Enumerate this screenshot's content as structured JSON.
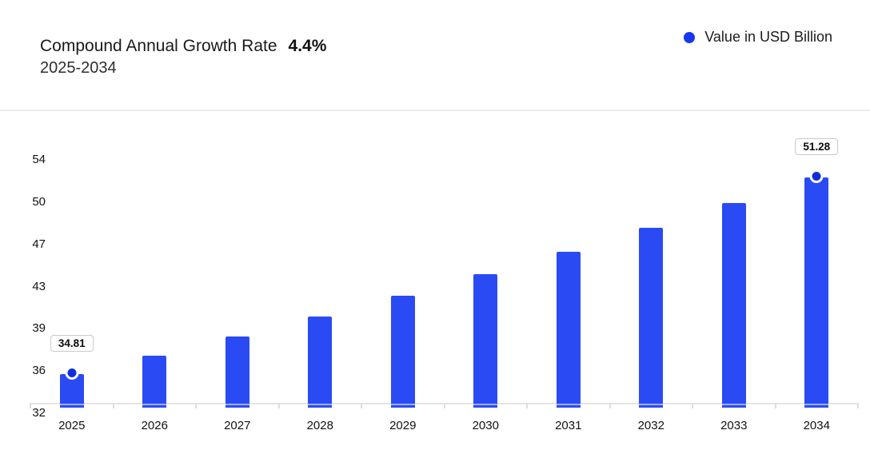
{
  "header": {
    "title": "Compound Annual Growth Rate",
    "cagr_value": "4.4%",
    "subtitle": "2025-2034",
    "legend": {
      "label": "Value in USD Billion"
    }
  },
  "colors": {
    "bar": "#2a4bf3",
    "marker_dot": "#0f2ed9",
    "legend_dot": "#1837f0",
    "axis_line": "#e3e3e3",
    "label_box_border": "#c9c9c9"
  },
  "chart_data": {
    "type": "bar",
    "title": "Compound Annual Growth Rate 4.4%",
    "subtitle": "2025-2034",
    "unit": "USD Billion",
    "categories": [
      "2025",
      "2026",
      "2027",
      "2028",
      "2029",
      "2030",
      "2031",
      "2032",
      "2033",
      "2034"
    ],
    "series": [
      {
        "name": "Value in USD Billion",
        "values": [
          34.81,
          36.34,
          37.94,
          39.61,
          41.35,
          43.17,
          45.07,
          47.05,
          49.12,
          51.28
        ]
      }
    ],
    "data_labels": [
      {
        "category": "2025",
        "label": "34.81"
      },
      {
        "category": "2034",
        "label": "51.28"
      }
    ],
    "ytick_labels": [
      "54",
      "50",
      "47",
      "43",
      "39",
      "36",
      "32"
    ],
    "ylim": [
      32,
      54
    ],
    "grid": false,
    "legend_position": "top-right"
  }
}
